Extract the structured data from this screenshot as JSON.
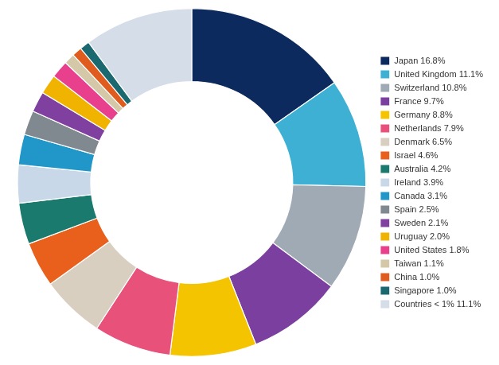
{
  "chart_data": {
    "type": "doughnut",
    "categories": [
      "Japan 16.8%",
      "United Kingdom 11.1%",
      "Switzerland 10.8%",
      "France 9.7%",
      "Germany 8.8%",
      "Netherlands 7.9%",
      "Denmark 6.5%",
      "Israel 4.6%",
      "Australia 4.2%",
      "Ireland 3.9%",
      "Canada 3.1%",
      "Spain 2.5%",
      "Sweden 2.1%",
      "Uruguay 2.0%",
      "United States 1.8%",
      "Taiwan 1.1%",
      "China 1.0%",
      "Singapore 1.0%",
      "Countries < 1% 11.1%"
    ],
    "values": [
      16.8,
      11.1,
      10.8,
      9.7,
      8.8,
      7.9,
      6.5,
      4.6,
      4.2,
      3.9,
      3.1,
      2.5,
      2.1,
      2.0,
      1.8,
      1.1,
      1.0,
      1.0,
      11.1
    ],
    "colors": [
      "#0d2a5e",
      "#3db0d4",
      "#a0aab4",
      "#7b3fa0",
      "#f5c400",
      "#e8527a",
      "#d9cfc0",
      "#e8601c",
      "#1a7a6e",
      "#c8d8e8",
      "#2196c8",
      "#808890",
      "#8040a0",
      "#f0b400",
      "#e8408c",
      "#d4c8a8",
      "#e05c1e",
      "#1a6870",
      "#d4dde8"
    ],
    "legend": "right"
  }
}
